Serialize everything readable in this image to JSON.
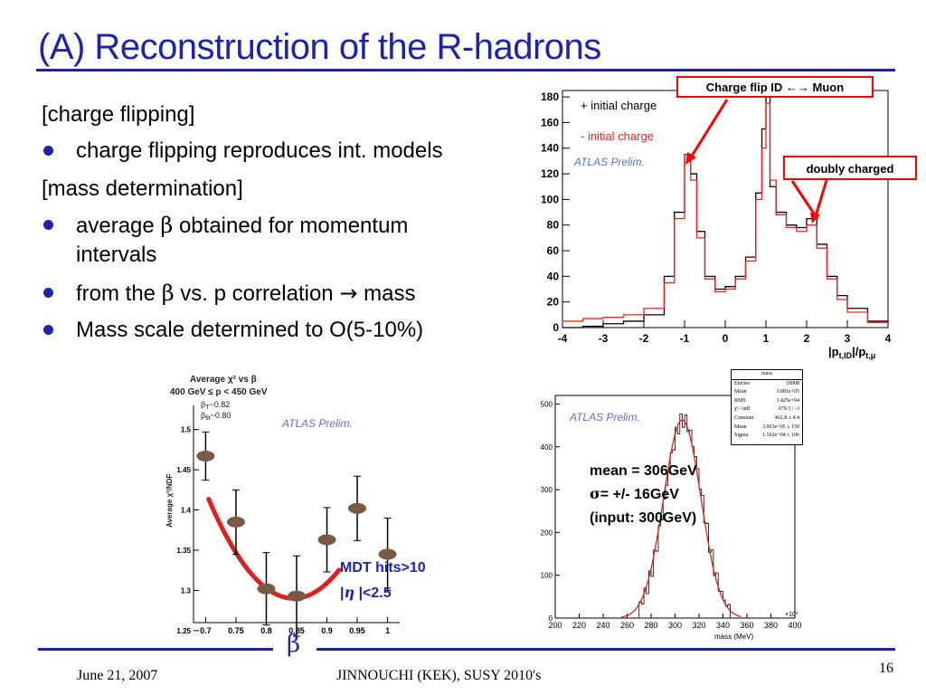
{
  "title": "(A) Reconstruction of the R-hadrons",
  "bullets": {
    "h1": "[charge flipping]",
    "b1": "charge flipping reproduces int. models",
    "h2": "[mass determination]",
    "b2_pre": "average ",
    "b2_sym": "β",
    "b2_post": " obtained for momentum",
    "b2_line2": "intervals",
    "b3_pre": "from the ",
    "b3_sym": "β",
    "b3_post": " vs. p correlation ",
    "b3_arrow": "→",
    "b3_end": " mass",
    "b4": "Mass scale determined to O(5-10%)"
  },
  "chart_data": [
    {
      "type": "line",
      "name": "charge-flip",
      "x": [
        -4,
        -3.5,
        -3,
        -2.5,
        -2,
        -1.5,
        -1.25,
        -1,
        -0.85,
        -0.7,
        -0.5,
        -0.25,
        0,
        0.25,
        0.5,
        0.75,
        0.9,
        1,
        1.1,
        1.25,
        1.5,
        1.75,
        2,
        2.25,
        2.5,
        2.75,
        3,
        3.5,
        4
      ],
      "series": [
        {
          "name": "+ initial charge",
          "color": "#000000",
          "values": [
            0,
            1,
            3,
            5,
            10,
            40,
            90,
            135,
            120,
            75,
            40,
            30,
            32,
            40,
            55,
            105,
            155,
            180,
            110,
            90,
            80,
            78,
            85,
            65,
            40,
            25,
            15,
            5,
            1
          ]
        },
        {
          "name": "- initial charge",
          "color": "#ff2020",
          "values": [
            5,
            7,
            8,
            10,
            15,
            35,
            85,
            135,
            115,
            70,
            38,
            28,
            30,
            38,
            52,
            100,
            140,
            175,
            115,
            88,
            78,
            75,
            80,
            62,
            38,
            22,
            12,
            4,
            1
          ]
        }
      ],
      "xlim": [
        -4,
        4
      ],
      "ylim": [
        0,
        185
      ],
      "xticks": [
        "-4",
        "-3",
        "-2",
        "-1",
        "0",
        "1",
        "2",
        "3",
        "4"
      ],
      "yticks": [
        "0",
        "20",
        "40",
        "60",
        "80",
        "100",
        "120",
        "140",
        "160",
        "180"
      ],
      "watermark": "ATLAS Prelim.",
      "annotations": [
        "Charge flip ID ←→ Muon",
        "doubly charged"
      ],
      "xlabel_main": "|p",
      "xlabel_sub1": "t,ID",
      "xlabel_mid": "|/p",
      "xlabel_sub2": "t,μ"
    },
    {
      "type": "scatter",
      "name": "chi2-vs-beta",
      "title_line1": "Average χ² vs β",
      "title_line2": "400 GeV ≤ p < 450 GeV",
      "title_line3": "β",
      "title_line3_sub": "T",
      "title_line3_val": "~0.82",
      "title_line4": "β",
      "title_line4_sub": "fit",
      "title_line4_val": "~0.80",
      "ylabel": "Average χ²/NDF",
      "x": [
        0.7,
        0.75,
        0.8,
        0.85,
        0.9,
        0.95,
        1.0
      ],
      "y": [
        1.467,
        1.385,
        1.302,
        1.293,
        1.363,
        1.402,
        1.345
      ],
      "yerr": [
        0.03,
        0.04,
        0.045,
        0.05,
        0.04,
        0.04,
        0.045
      ],
      "xlim": [
        0.68,
        1.02
      ],
      "ylim": [
        1.26,
        1.53
      ],
      "xticks": [
        "0.7",
        "0.75",
        "0.8",
        "0.85",
        "0.9",
        "0.95",
        "1"
      ],
      "yticks": [
        "1.25",
        "1.3",
        "1.35",
        "1.4",
        "1.45",
        "1.5"
      ],
      "watermark": "ATLAS Prelim.",
      "annotation1": "MDT hits>10",
      "annotation2_pre": "|",
      "annotation2_sym": "η",
      "annotation2_post": " |<2.5"
    },
    {
      "type": "bar",
      "name": "mass-histogram",
      "stats_title": "mass",
      "stats": [
        {
          "k": "Entries",
          "v": "18908"
        },
        {
          "k": "Mean",
          "v": "3.081e+05"
        },
        {
          "k": "RMS",
          "v": "1.425e+04"
        },
        {
          "k": "χ² / ndf",
          "v": "670.3 / -3"
        },
        {
          "k": "Constant",
          "v": "462.8 ± 4.4"
        },
        {
          "k": "Mean",
          "v": "3.063e+05 ± 150"
        },
        {
          "k": "Sigma",
          "v": "1.562e+04 ± 106"
        }
      ],
      "xlim": [
        200,
        400
      ],
      "ylim": [
        0,
        520
      ],
      "xticks": [
        "200",
        "220",
        "240",
        "260",
        "280",
        "300",
        "320",
        "340",
        "360",
        "380",
        "400"
      ],
      "yticks": [
        "0",
        "100",
        "200",
        "300",
        "400",
        "500"
      ],
      "xlabel": "mass (MeV)",
      "xexp": "×10³",
      "watermark": "ATLAS Prelim.",
      "fit_mean": 306,
      "fit_sigma": 15.6,
      "fit_const": 463,
      "annotation1": "mean = 306GeV",
      "annotation2_sym": "σ",
      "annotation2_post": "= +/- 16GeV",
      "annotation3": "(input: 300GeV)"
    }
  ],
  "footer": {
    "beta": "β",
    "date": "June 21,  2007",
    "center": "JINNOUCHI (KEK), SUSY 2010's",
    "page": "16"
  },
  "colors": {
    "title": "#1f23a8",
    "accent": "#1f23a8",
    "annotation_red": "#ff0000",
    "watermark": "#5a6fd6"
  }
}
